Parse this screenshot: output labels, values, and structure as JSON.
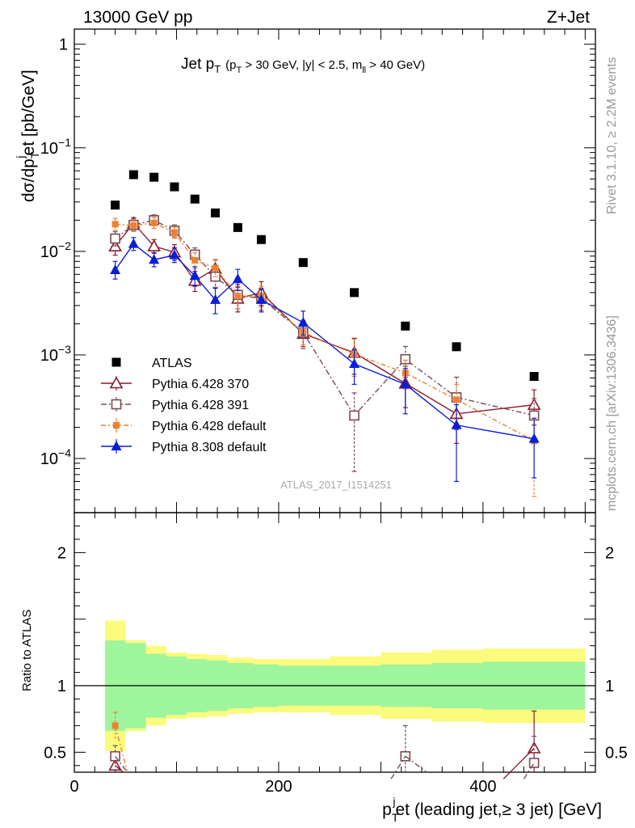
{
  "header": {
    "energy_label": "13000 GeV pp",
    "process_label": "Z+Jet"
  },
  "side_labels": {
    "rivet": "Rivet 3.1.10, ≥ 2.2M events",
    "mcplots": "mcplots.cern.ch [arXiv:1306.3436]"
  },
  "chart_data": [
    {
      "type": "scatter",
      "title_main": "Jet p",
      "title_main_sub": "T",
      "title_cut_1": "(p",
      "title_cut_1_sub": "T",
      "title_cut_2": " > 30 GeV, |y| < 2.5, m",
      "title_cut_2_sub": "ll",
      "title_cut_3": " > 40 GeV)",
      "ylabel": "dσ/dp",
      "ylabel_sub": "T",
      "ylabel_sup": "j",
      "ylabel_rest": "et [pb/GeV]",
      "y_scale": "log",
      "ylim": [
        3e-05,
        1.4
      ],
      "xlim": [
        0,
        510
      ],
      "y_ticks": [
        {
          "value": 1,
          "base": "1",
          "exp": ""
        },
        {
          "value": 0.1,
          "base": "10",
          "exp": "−1"
        },
        {
          "value": 0.01,
          "base": "10",
          "exp": "−2"
        },
        {
          "value": 0.001,
          "base": "10",
          "exp": "−3"
        },
        {
          "value": 0.0001,
          "base": "10",
          "exp": "−4"
        }
      ],
      "watermark": "ATLAS_2017_I1514251",
      "legend_position": "lower-left",
      "data_series": {
        "name": "ATLAS",
        "color": "#000000",
        "marker": "square-filled",
        "x": [
          40,
          58,
          78,
          98,
          118,
          138,
          160,
          183,
          224,
          274,
          324,
          374,
          450
        ],
        "y": [
          0.028,
          0.055,
          0.052,
          0.042,
          0.032,
          0.0235,
          0.017,
          0.013,
          0.0078,
          0.004,
          0.0019,
          0.0012,
          0.00062
        ],
        "xerr": [
          10,
          10,
          10,
          10,
          10,
          10,
          12.5,
          12.5,
          25,
          25,
          25,
          25,
          50
        ]
      },
      "series": [
        {
          "name": "Pythia 6.428 370",
          "color": "#8b1a2b",
          "marker": "triangle-open",
          "dash": "",
          "x": [
            40,
            58,
            78,
            98,
            118,
            138,
            160,
            183,
            224,
            274,
            324,
            374,
            450
          ],
          "y": [
            0.0112,
            0.0187,
            0.0112,
            0.0098,
            0.0052,
            0.0068,
            0.0035,
            0.004,
            0.0016,
            0.00105,
            0.00053,
            0.00027,
            0.00033
          ],
          "yerr_up": [
            0.0022,
            0.0025,
            0.0018,
            0.0018,
            0.0012,
            0.0015,
            0.001,
            0.0011,
            0.0004,
            0.0004,
            0.00025,
            0.00015,
            0.00013
          ],
          "yerr_down": [
            0.002,
            0.0023,
            0.0016,
            0.0016,
            0.0011,
            0.0014,
            0.0009,
            0.001,
            0.0004,
            0.0004,
            0.00022,
            0.00013,
            0.00012
          ]
        },
        {
          "name": "Pythia 6.428 391",
          "color": "#7a4a52",
          "marker": "square-open",
          "dash": "7,3,2,3",
          "x": [
            40,
            58,
            78,
            98,
            118,
            138,
            160,
            183,
            224,
            274,
            324,
            374,
            450
          ],
          "y": [
            0.0133,
            0.018,
            0.02,
            0.0158,
            0.0093,
            0.0057,
            0.0038,
            0.0035,
            0.00165,
            0.00026,
            0.00091,
            0.00039,
            0.00026
          ],
          "yerr_up": [
            0.0022,
            0.0025,
            0.0025,
            0.0022,
            0.0015,
            0.0013,
            0.001,
            0.0009,
            0.0005,
            0.00017,
            0.0003,
            0.00022,
            0.00012
          ],
          "yerr_down": [
            0.002,
            0.0022,
            0.0022,
            0.002,
            0.0014,
            0.0012,
            0.001,
            0.0008,
            0.0005,
            0.000185,
            0.0003,
            0.0002,
            0.00012
          ]
        },
        {
          "name": "Pythia 6.428 default",
          "color": "#f08030",
          "marker": "square-filled-small",
          "dash": "6,3,2,3",
          "x": [
            40,
            58,
            78,
            98,
            118,
            138,
            160,
            183,
            224,
            274,
            324,
            374,
            450
          ],
          "y": [
            0.0183,
            0.0178,
            0.0188,
            0.0152,
            0.0082,
            0.0069,
            0.0037,
            0.0037,
            0.00165,
            0.00102,
            0.00067,
            0.00037,
            0.000148
          ],
          "yerr_up": [
            0.0025,
            0.0025,
            0.0025,
            0.002,
            0.0015,
            0.0013,
            0.0009,
            0.0009,
            0.0004,
            0.0004,
            0.00022,
            0.00015,
            9e-05
          ],
          "yerr_down": [
            0.0023,
            0.0022,
            0.0022,
            0.0018,
            0.0014,
            0.0012,
            0.0009,
            0.0008,
            0.0004,
            0.0004,
            0.0002,
            0.00013,
            0.000105
          ]
        },
        {
          "name": "Pythia 8.308 default",
          "color": "#0a1ed8",
          "marker": "triangle-filled",
          "dash": "",
          "x": [
            40,
            58,
            78,
            98,
            118,
            138,
            160,
            183,
            224,
            274,
            324,
            374,
            450
          ],
          "y": [
            0.0066,
            0.0118,
            0.0083,
            0.0092,
            0.0058,
            0.0034,
            0.0054,
            0.0034,
            0.00205,
            0.00082,
            0.00052,
            0.00021,
            0.000155
          ],
          "yerr_up": [
            0.0014,
            0.0018,
            0.0014,
            0.0016,
            0.0013,
            0.001,
            0.0013,
            0.0009,
            0.0006,
            0.0003,
            0.00022,
            0.00012,
            9e-05
          ],
          "yerr_down": [
            0.0012,
            0.0016,
            0.0012,
            0.0014,
            0.0012,
            0.0009,
            0.0012,
            0.0008,
            0.0005,
            0.0003,
            0.00025,
            0.00015,
            9e-05
          ]
        }
      ]
    },
    {
      "type": "scatter",
      "ylabel": "Ratio to ATLAS",
      "xlabel": "p",
      "xlabel_sub": "T",
      "xlabel_sup": "j",
      "xlabel_rest": "et (leading jet,≥ 3 jet) [GeV]",
      "xlim": [
        0,
        510
      ],
      "ylim": [
        0.35,
        2.3
      ],
      "x_ticks": [
        0,
        200,
        400
      ],
      "y_ticks": [
        0.5,
        1,
        2
      ],
      "band_edges": [
        30,
        50,
        70,
        90,
        110,
        130,
        150,
        175,
        200,
        250,
        300,
        350,
        400,
        500
      ],
      "band_inner": [
        0.34,
        0.32,
        0.24,
        0.22,
        0.2,
        0.19,
        0.17,
        0.16,
        0.15,
        0.15,
        0.16,
        0.17,
        0.18
      ],
      "band_outer": [
        0.49,
        0.34,
        0.3,
        0.25,
        0.24,
        0.23,
        0.21,
        0.2,
        0.2,
        0.22,
        0.25,
        0.27,
        0.28
      ],
      "ratio_points": [
        {
          "series": 0,
          "x": 40,
          "y": 0.4,
          "err_up": 0.08,
          "err_down": 0.08
        },
        {
          "series": 0,
          "x": 450,
          "y": 0.53,
          "err_up": 0.28,
          "err_down": 0.2
        },
        {
          "series": 1,
          "x": 40,
          "y": 0.47,
          "err_up": 0.08,
          "err_down": 0.08
        },
        {
          "series": 1,
          "x": 324,
          "y": 0.47,
          "err_up": 0.23,
          "err_down": 0.18
        },
        {
          "series": 1,
          "x": 450,
          "y": 0.42,
          "err_up": 0.2,
          "err_down": 0.14
        },
        {
          "series": 2,
          "x": 40,
          "y": 0.7,
          "err_up": 0.1,
          "err_down": 0.1
        }
      ]
    }
  ]
}
